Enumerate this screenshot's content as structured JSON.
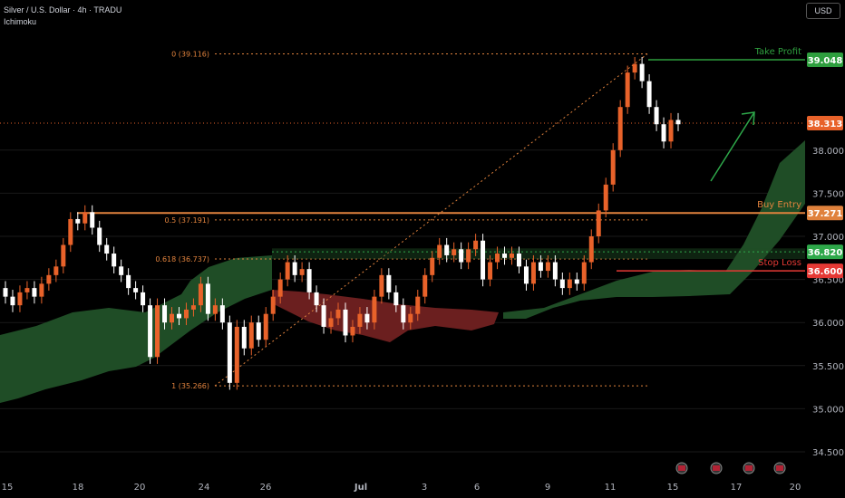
{
  "header": {
    "symbol_line": "Silver / U.S. Dollar · 4h · TRADU",
    "indicator": "Ichimoku"
  },
  "currency_button": "USD",
  "colors": {
    "up": "#e8622a",
    "down": "#ffffff",
    "take_profit": "#2e9e3e",
    "buy_entry": "#e0823d",
    "stop_loss": "#e53935",
    "zone": "#2ea84a",
    "cloud_bull": "#1f4d26",
    "cloud_bear": "#6b1f1f",
    "arrow": "#2ea84a",
    "grid": "#1a1a1a"
  },
  "levels": {
    "take_profit": {
      "label": "Take Profit",
      "price": "39.048"
    },
    "buy_entry": {
      "label": "Buy Entry",
      "price": "37.271"
    },
    "zone": {
      "price": "36.820"
    },
    "stop_loss": {
      "label": "Stop Loss",
      "price": "36.600"
    },
    "last_price": {
      "price": "38.313"
    }
  },
  "fib": [
    {
      "label": "0 (39.116)",
      "price": 39.116
    },
    {
      "label": "0.5 (37.191)",
      "price": 37.191
    },
    {
      "label": "0.618 (36.737)",
      "price": 36.737
    },
    {
      "label": "1 (35.266)",
      "price": 35.266
    }
  ],
  "chart_data": {
    "type": "candlestick",
    "title": "Silver / U.S. Dollar · 4h · TRADU",
    "y_ticks": [
      "38.000",
      "37.500",
      "37.000",
      "36.500",
      "36.000",
      "35.500",
      "35.000",
      "34.500"
    ],
    "x_ticks": [
      "15",
      "18",
      "20",
      "24",
      "26",
      "Jul",
      "3",
      "6",
      "9",
      "11",
      "15",
      "17",
      "20"
    ],
    "ylim": [
      34.3,
      39.5
    ],
    "candles": [
      [
        36.4,
        36.3
      ],
      [
        36.3,
        36.2
      ],
      [
        36.2,
        36.35
      ],
      [
        36.35,
        36.4
      ],
      [
        36.4,
        36.3
      ],
      [
        36.3,
        36.45
      ],
      [
        36.45,
        36.55
      ],
      [
        36.55,
        36.65
      ],
      [
        36.65,
        36.9
      ],
      [
        36.9,
        37.2
      ],
      [
        37.2,
        37.15
      ],
      [
        37.15,
        37.28
      ],
      [
        37.28,
        37.1
      ],
      [
        37.1,
        36.9
      ],
      [
        36.9,
        36.8
      ],
      [
        36.8,
        36.65
      ],
      [
        36.65,
        36.55
      ],
      [
        36.55,
        36.4
      ],
      [
        36.4,
        36.35
      ],
      [
        36.35,
        36.2
      ],
      [
        36.2,
        35.6
      ],
      [
        35.6,
        36.2
      ],
      [
        36.2,
        36.0
      ],
      [
        36.0,
        36.1
      ],
      [
        36.1,
        36.05
      ],
      [
        36.05,
        36.15
      ],
      [
        36.15,
        36.2
      ],
      [
        36.2,
        36.45
      ],
      [
        36.45,
        36.1
      ],
      [
        36.1,
        36.2
      ],
      [
        36.2,
        36.0
      ],
      [
        36.0,
        35.3
      ],
      [
        35.3,
        35.95
      ],
      [
        35.95,
        35.7
      ],
      [
        35.7,
        36.0
      ],
      [
        36.0,
        35.8
      ],
      [
        35.8,
        36.1
      ],
      [
        36.1,
        36.3
      ],
      [
        36.3,
        36.5
      ],
      [
        36.5,
        36.7
      ],
      [
        36.7,
        36.55
      ],
      [
        36.55,
        36.62
      ],
      [
        36.62,
        36.35
      ],
      [
        36.35,
        36.2
      ],
      [
        36.2,
        35.95
      ],
      [
        35.95,
        36.05
      ],
      [
        36.05,
        36.15
      ],
      [
        36.15,
        35.85
      ],
      [
        35.85,
        35.95
      ],
      [
        35.95,
        36.1
      ],
      [
        36.1,
        36.0
      ],
      [
        36.0,
        36.3
      ],
      [
        36.3,
        36.55
      ],
      [
        36.55,
        36.35
      ],
      [
        36.35,
        36.2
      ],
      [
        36.2,
        36.0
      ],
      [
        36.0,
        36.1
      ],
      [
        36.1,
        36.3
      ],
      [
        36.3,
        36.55
      ],
      [
        36.55,
        36.75
      ],
      [
        36.75,
        36.9
      ],
      [
        36.9,
        36.78
      ],
      [
        36.78,
        36.85
      ],
      [
        36.85,
        36.7
      ],
      [
        36.7,
        36.85
      ],
      [
        36.85,
        36.95
      ],
      [
        36.95,
        36.5
      ],
      [
        36.5,
        36.7
      ],
      [
        36.7,
        36.8
      ],
      [
        36.8,
        36.75
      ],
      [
        36.75,
        36.8
      ],
      [
        36.8,
        36.65
      ],
      [
        36.65,
        36.45
      ],
      [
        36.45,
        36.7
      ],
      [
        36.7,
        36.6
      ],
      [
        36.6,
        36.7
      ],
      [
        36.7,
        36.5
      ],
      [
        36.5,
        36.4
      ],
      [
        36.4,
        36.5
      ],
      [
        36.5,
        36.45
      ],
      [
        36.45,
        36.7
      ],
      [
        36.7,
        37.0
      ],
      [
        37.0,
        37.3
      ],
      [
        37.3,
        37.6
      ],
      [
        37.6,
        38.0
      ],
      [
        38.0,
        38.5
      ],
      [
        38.5,
        38.9
      ],
      [
        38.9,
        39.0
      ],
      [
        39.0,
        38.8
      ],
      [
        38.8,
        38.5
      ],
      [
        38.5,
        38.3
      ],
      [
        38.3,
        38.1
      ],
      [
        38.1,
        38.35
      ],
      [
        38.35,
        38.3
      ]
    ]
  }
}
